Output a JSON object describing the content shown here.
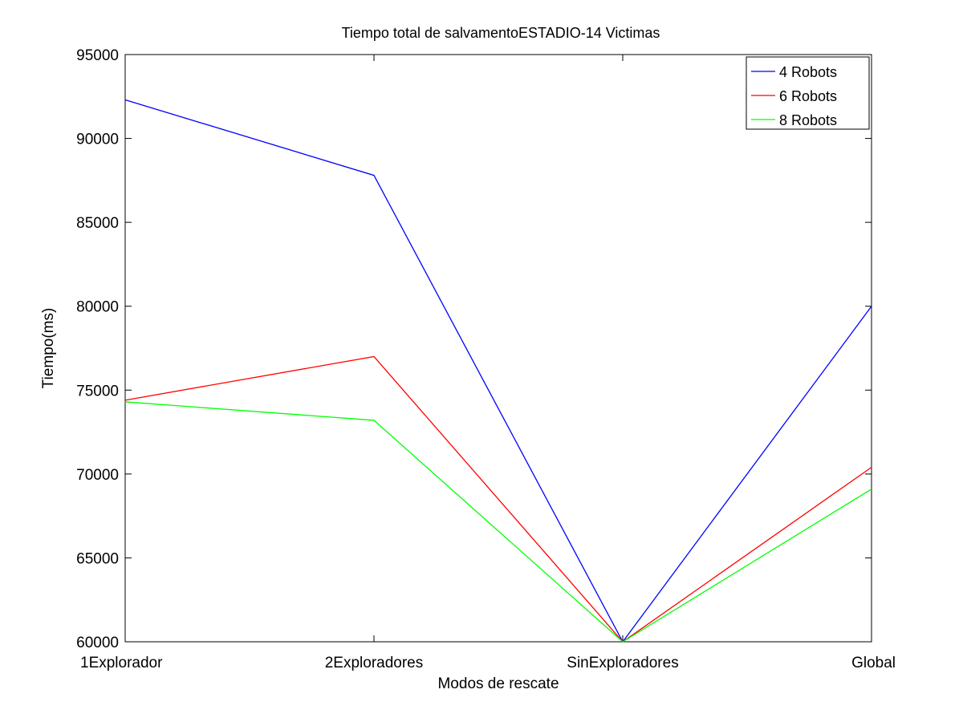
{
  "chart_data": {
    "type": "line",
    "title": "Tiempo total de salvamentoESTADIO-14 Victimas",
    "xlabel": "Modos de rescate",
    "ylabel": "Tiempo(ms)",
    "categories": [
      "1Explorador",
      "2Exploradores",
      "SinExploradores",
      "Global"
    ],
    "ylim": [
      60000,
      95000
    ],
    "yticks": [
      60000,
      65000,
      70000,
      75000,
      80000,
      85000,
      90000,
      95000
    ],
    "grid": false,
    "legend_position": "top-right",
    "series": [
      {
        "name": "4 Robots",
        "color": "#0000ff",
        "values": [
          92300,
          87800,
          60000,
          80000
        ]
      },
      {
        "name": "6 Robots",
        "color": "#ff0000",
        "values": [
          74400,
          77000,
          60000,
          70400
        ]
      },
      {
        "name": "8 Robots",
        "color": "#00ff00",
        "values": [
          74300,
          73200,
          60000,
          69100
        ]
      }
    ]
  }
}
